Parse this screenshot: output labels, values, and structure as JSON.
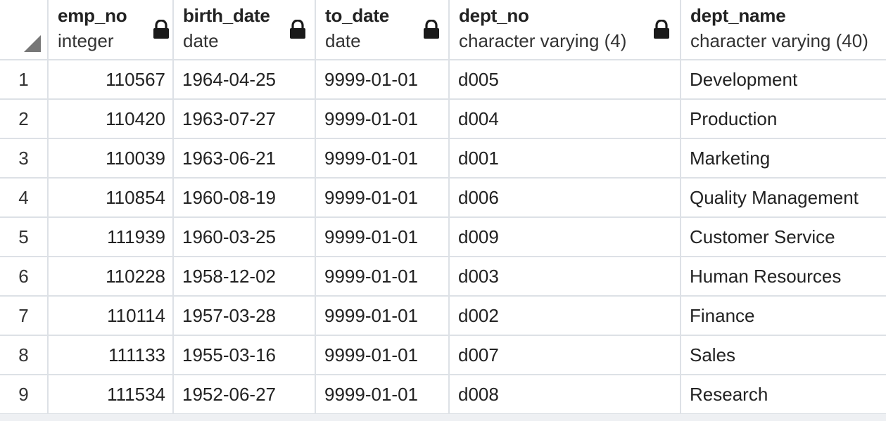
{
  "columns": [
    {
      "name": "emp_no",
      "type": "integer"
    },
    {
      "name": "birth_date",
      "type": "date"
    },
    {
      "name": "to_date",
      "type": "date"
    },
    {
      "name": "dept_no",
      "type": "character varying (4)"
    },
    {
      "name": "dept_name",
      "type": "character varying (40)"
    }
  ],
  "rows": [
    {
      "n": "1",
      "emp_no": "110567",
      "birth_date": "1964-04-25",
      "to_date": "9999-01-01",
      "dept_no": "d005",
      "dept_name": "Development"
    },
    {
      "n": "2",
      "emp_no": "110420",
      "birth_date": "1963-07-27",
      "to_date": "9999-01-01",
      "dept_no": "d004",
      "dept_name": "Production"
    },
    {
      "n": "3",
      "emp_no": "110039",
      "birth_date": "1963-06-21",
      "to_date": "9999-01-01",
      "dept_no": "d001",
      "dept_name": "Marketing"
    },
    {
      "n": "4",
      "emp_no": "110854",
      "birth_date": "1960-08-19",
      "to_date": "9999-01-01",
      "dept_no": "d006",
      "dept_name": "Quality Management"
    },
    {
      "n": "5",
      "emp_no": "111939",
      "birth_date": "1960-03-25",
      "to_date": "9999-01-01",
      "dept_no": "d009",
      "dept_name": "Customer Service"
    },
    {
      "n": "6",
      "emp_no": "110228",
      "birth_date": "1958-12-02",
      "to_date": "9999-01-01",
      "dept_no": "d003",
      "dept_name": "Human Resources"
    },
    {
      "n": "7",
      "emp_no": "110114",
      "birth_date": "1957-03-28",
      "to_date": "9999-01-01",
      "dept_no": "d002",
      "dept_name": "Finance"
    },
    {
      "n": "8",
      "emp_no": "111133",
      "birth_date": "1955-03-16",
      "to_date": "9999-01-01",
      "dept_no": "d007",
      "dept_name": "Sales"
    },
    {
      "n": "9",
      "emp_no": "111534",
      "birth_date": "1952-06-27",
      "to_date": "9999-01-01",
      "dept_no": "d008",
      "dept_name": "Research"
    }
  ],
  "icons": {
    "lock": "lock-icon",
    "select_all": "select-all-corner-icon"
  },
  "colors": {
    "grid_line": "#dde1e6",
    "lock": "#1a1a1a",
    "corner": "#777777"
  }
}
